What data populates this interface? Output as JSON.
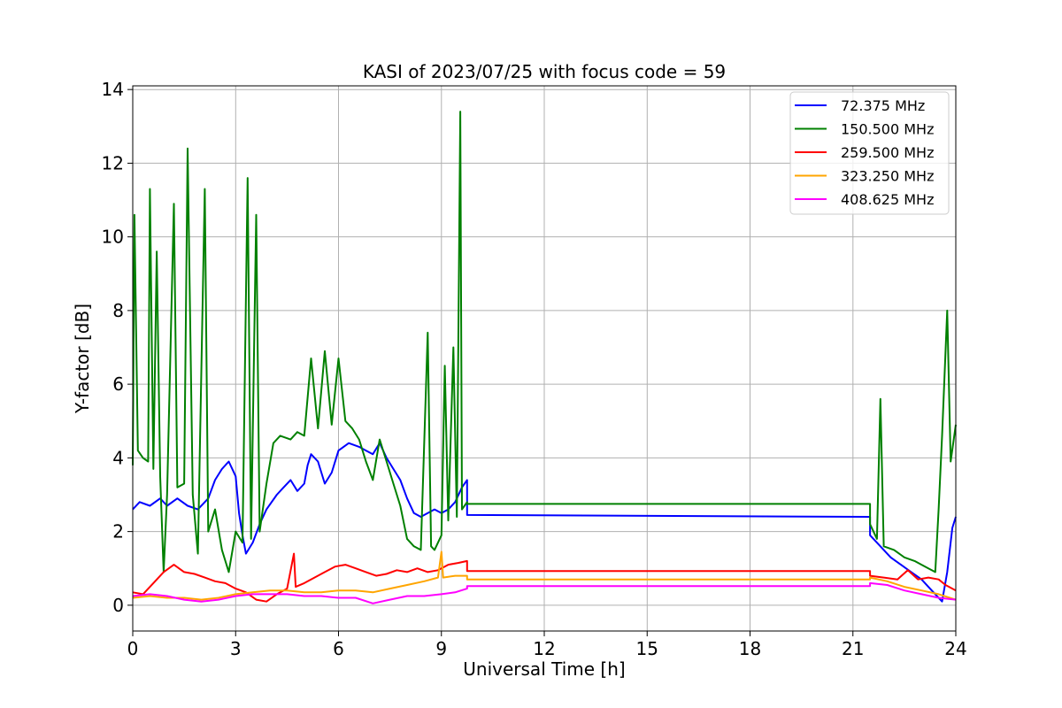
{
  "chart_data": {
    "type": "line",
    "title": "KASI of 2023/07/25 with focus code = 59",
    "xlabel": "Universal Time [h]",
    "ylabel": "Y-factor [dB]",
    "xlim": [
      0,
      24
    ],
    "ylim": [
      -0.7,
      14.1
    ],
    "xticks": [
      0,
      3,
      6,
      9,
      12,
      15,
      18,
      21,
      24
    ],
    "yticks": [
      0,
      2,
      4,
      6,
      8,
      10,
      12,
      14
    ],
    "grid": true,
    "legend_position": "top-right",
    "series": [
      {
        "name": "  72.375 MHz",
        "color": "#0000ff",
        "points": [
          [
            0.0,
            2.6
          ],
          [
            0.2,
            2.8
          ],
          [
            0.5,
            2.7
          ],
          [
            0.8,
            2.9
          ],
          [
            1.0,
            2.7
          ],
          [
            1.3,
            2.9
          ],
          [
            1.6,
            2.7
          ],
          [
            1.9,
            2.6
          ],
          [
            2.2,
            2.9
          ],
          [
            2.4,
            3.4
          ],
          [
            2.6,
            3.7
          ],
          [
            2.8,
            3.9
          ],
          [
            3.0,
            3.5
          ],
          [
            3.1,
            2.5
          ],
          [
            3.2,
            1.9
          ],
          [
            3.3,
            1.4
          ],
          [
            3.5,
            1.7
          ],
          [
            3.7,
            2.2
          ],
          [
            3.9,
            2.6
          ],
          [
            4.2,
            3.0
          ],
          [
            4.4,
            3.2
          ],
          [
            4.6,
            3.4
          ],
          [
            4.8,
            3.1
          ],
          [
            5.0,
            3.3
          ],
          [
            5.1,
            3.8
          ],
          [
            5.2,
            4.1
          ],
          [
            5.4,
            3.9
          ],
          [
            5.6,
            3.3
          ],
          [
            5.8,
            3.6
          ],
          [
            6.0,
            4.2
          ],
          [
            6.3,
            4.4
          ],
          [
            6.6,
            4.3
          ],
          [
            6.8,
            4.2
          ],
          [
            7.0,
            4.1
          ],
          [
            7.2,
            4.4
          ],
          [
            7.4,
            4.0
          ],
          [
            7.6,
            3.7
          ],
          [
            7.8,
            3.4
          ],
          [
            8.0,
            2.9
          ],
          [
            8.2,
            2.5
          ],
          [
            8.4,
            2.4
          ],
          [
            8.6,
            2.5
          ],
          [
            8.8,
            2.6
          ],
          [
            9.0,
            2.5
          ],
          [
            9.2,
            2.6
          ],
          [
            9.4,
            2.8
          ],
          [
            9.6,
            3.2
          ],
          [
            9.75,
            3.4
          ],
          [
            9.75,
            2.45
          ],
          [
            21.5,
            2.4
          ],
          [
            21.5,
            1.9
          ],
          [
            21.8,
            1.6
          ],
          [
            22.1,
            1.3
          ],
          [
            22.4,
            1.1
          ],
          [
            22.7,
            0.9
          ],
          [
            23.0,
            0.7
          ],
          [
            23.2,
            0.5
          ],
          [
            23.4,
            0.3
          ],
          [
            23.6,
            0.1
          ],
          [
            23.75,
            0.9
          ],
          [
            23.9,
            2.1
          ],
          [
            24.0,
            2.4
          ]
        ]
      },
      {
        "name": "150.500 MHz",
        "color": "#008000",
        "points": [
          [
            0.0,
            3.8
          ],
          [
            0.05,
            10.6
          ],
          [
            0.15,
            4.2
          ],
          [
            0.3,
            4.0
          ],
          [
            0.45,
            3.9
          ],
          [
            0.5,
            11.3
          ],
          [
            0.6,
            3.7
          ],
          [
            0.7,
            9.6
          ],
          [
            0.8,
            3.5
          ],
          [
            0.9,
            0.9
          ],
          [
            1.0,
            3.0
          ],
          [
            1.2,
            10.9
          ],
          [
            1.3,
            3.2
          ],
          [
            1.5,
            3.3
          ],
          [
            1.6,
            12.4
          ],
          [
            1.75,
            3.0
          ],
          [
            1.9,
            1.4
          ],
          [
            2.1,
            11.3
          ],
          [
            2.2,
            2.0
          ],
          [
            2.4,
            2.6
          ],
          [
            2.6,
            1.5
          ],
          [
            2.8,
            0.9
          ],
          [
            3.0,
            2.0
          ],
          [
            3.2,
            1.7
          ],
          [
            3.35,
            11.6
          ],
          [
            3.45,
            1.8
          ],
          [
            3.6,
            10.6
          ],
          [
            3.7,
            2.0
          ],
          [
            3.9,
            3.3
          ],
          [
            4.1,
            4.4
          ],
          [
            4.3,
            4.6
          ],
          [
            4.6,
            4.5
          ],
          [
            4.8,
            4.7
          ],
          [
            5.0,
            4.6
          ],
          [
            5.2,
            6.7
          ],
          [
            5.4,
            4.8
          ],
          [
            5.6,
            6.9
          ],
          [
            5.8,
            4.9
          ],
          [
            6.0,
            6.7
          ],
          [
            6.2,
            5.0
          ],
          [
            6.4,
            4.8
          ],
          [
            6.6,
            4.5
          ],
          [
            6.8,
            3.9
          ],
          [
            7.0,
            3.4
          ],
          [
            7.2,
            4.5
          ],
          [
            7.4,
            3.9
          ],
          [
            7.6,
            3.3
          ],
          [
            7.8,
            2.7
          ],
          [
            8.0,
            1.8
          ],
          [
            8.2,
            1.6
          ],
          [
            8.4,
            1.5
          ],
          [
            8.6,
            7.4
          ],
          [
            8.7,
            1.6
          ],
          [
            8.8,
            1.5
          ],
          [
            9.0,
            1.9
          ],
          [
            9.1,
            6.5
          ],
          [
            9.2,
            2.3
          ],
          [
            9.35,
            7.0
          ],
          [
            9.45,
            2.4
          ],
          [
            9.55,
            13.4
          ],
          [
            9.6,
            2.6
          ],
          [
            9.75,
            2.8
          ],
          [
            9.75,
            2.75
          ],
          [
            21.5,
            2.75
          ],
          [
            21.5,
            2.2
          ],
          [
            21.7,
            1.8
          ],
          [
            21.8,
            5.6
          ],
          [
            21.9,
            1.6
          ],
          [
            22.2,
            1.5
          ],
          [
            22.5,
            1.3
          ],
          [
            22.8,
            1.2
          ],
          [
            23.0,
            1.1
          ],
          [
            23.2,
            1.0
          ],
          [
            23.4,
            0.9
          ],
          [
            23.5,
            2.6
          ],
          [
            23.6,
            4.6
          ],
          [
            23.75,
            8.0
          ],
          [
            23.85,
            3.9
          ],
          [
            24.0,
            4.9
          ]
        ]
      },
      {
        "name": "259.500 MHz",
        "color": "#ff0000",
        "points": [
          [
            0.0,
            0.35
          ],
          [
            0.3,
            0.3
          ],
          [
            0.6,
            0.6
          ],
          [
            0.9,
            0.9
          ],
          [
            1.2,
            1.1
          ],
          [
            1.5,
            0.9
          ],
          [
            1.8,
            0.85
          ],
          [
            2.1,
            0.75
          ],
          [
            2.4,
            0.65
          ],
          [
            2.7,
            0.6
          ],
          [
            3.0,
            0.45
          ],
          [
            3.3,
            0.35
          ],
          [
            3.6,
            0.15
          ],
          [
            3.9,
            0.1
          ],
          [
            4.2,
            0.3
          ],
          [
            4.5,
            0.45
          ],
          [
            4.7,
            1.4
          ],
          [
            4.75,
            0.5
          ],
          [
            5.0,
            0.6
          ],
          [
            5.3,
            0.75
          ],
          [
            5.6,
            0.9
          ],
          [
            5.9,
            1.05
          ],
          [
            6.2,
            1.1
          ],
          [
            6.5,
            1.0
          ],
          [
            6.8,
            0.9
          ],
          [
            7.1,
            0.8
          ],
          [
            7.4,
            0.85
          ],
          [
            7.7,
            0.95
          ],
          [
            8.0,
            0.9
          ],
          [
            8.3,
            1.0
          ],
          [
            8.6,
            0.9
          ],
          [
            8.9,
            0.95
          ],
          [
            9.2,
            1.1
          ],
          [
            9.5,
            1.15
          ],
          [
            9.75,
            1.2
          ],
          [
            9.75,
            0.93
          ],
          [
            21.5,
            0.93
          ],
          [
            21.5,
            0.8
          ],
          [
            21.9,
            0.75
          ],
          [
            22.3,
            0.7
          ],
          [
            22.6,
            0.95
          ],
          [
            22.9,
            0.7
          ],
          [
            23.2,
            0.75
          ],
          [
            23.5,
            0.7
          ],
          [
            23.7,
            0.55
          ],
          [
            24.0,
            0.4
          ]
        ]
      },
      {
        "name": "323.250 MHz",
        "color": "#ffa500",
        "points": [
          [
            0.0,
            0.2
          ],
          [
            0.5,
            0.25
          ],
          [
            1.0,
            0.2
          ],
          [
            1.5,
            0.2
          ],
          [
            2.0,
            0.15
          ],
          [
            2.5,
            0.2
          ],
          [
            3.0,
            0.3
          ],
          [
            3.5,
            0.35
          ],
          [
            4.0,
            0.4
          ],
          [
            4.5,
            0.4
          ],
          [
            5.0,
            0.35
          ],
          [
            5.5,
            0.35
          ],
          [
            6.0,
            0.4
          ],
          [
            6.5,
            0.4
          ],
          [
            7.0,
            0.35
          ],
          [
            7.5,
            0.45
          ],
          [
            8.0,
            0.55
          ],
          [
            8.5,
            0.65
          ],
          [
            8.9,
            0.75
          ],
          [
            9.0,
            1.45
          ],
          [
            9.05,
            0.75
          ],
          [
            9.4,
            0.8
          ],
          [
            9.75,
            0.8
          ],
          [
            9.75,
            0.7
          ],
          [
            21.5,
            0.7
          ],
          [
            21.5,
            0.75
          ],
          [
            22.0,
            0.65
          ],
          [
            22.5,
            0.5
          ],
          [
            23.0,
            0.4
          ],
          [
            23.5,
            0.3
          ],
          [
            24.0,
            0.15
          ]
        ]
      },
      {
        "name": "408.625 MHz",
        "color": "#ff00ff",
        "points": [
          [
            0.0,
            0.25
          ],
          [
            0.5,
            0.3
          ],
          [
            1.0,
            0.25
          ],
          [
            1.5,
            0.15
          ],
          [
            2.0,
            0.1
          ],
          [
            2.5,
            0.15
          ],
          [
            3.0,
            0.25
          ],
          [
            3.5,
            0.3
          ],
          [
            4.0,
            0.3
          ],
          [
            4.5,
            0.3
          ],
          [
            5.0,
            0.25
          ],
          [
            5.5,
            0.25
          ],
          [
            6.0,
            0.2
          ],
          [
            6.5,
            0.2
          ],
          [
            7.0,
            0.05
          ],
          [
            7.5,
            0.15
          ],
          [
            8.0,
            0.25
          ],
          [
            8.5,
            0.25
          ],
          [
            9.0,
            0.3
          ],
          [
            9.4,
            0.35
          ],
          [
            9.75,
            0.45
          ],
          [
            9.75,
            0.52
          ],
          [
            21.5,
            0.52
          ],
          [
            21.5,
            0.6
          ],
          [
            22.0,
            0.55
          ],
          [
            22.5,
            0.4
          ],
          [
            23.0,
            0.3
          ],
          [
            23.5,
            0.2
          ],
          [
            24.0,
            0.15
          ]
        ]
      }
    ]
  }
}
